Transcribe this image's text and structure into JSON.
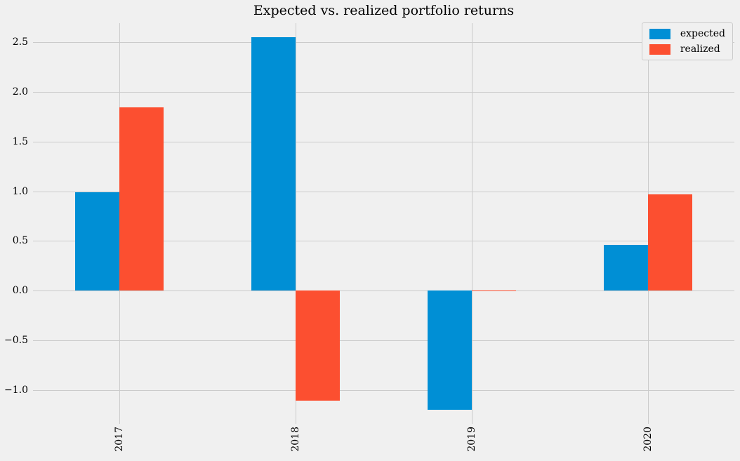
{
  "chart_data": {
    "type": "bar",
    "title": "Expected vs. realized portfolio returns",
    "categories": [
      "2017",
      "2018",
      "2019",
      "2020"
    ],
    "series": [
      {
        "name": "expected",
        "color": "#008fd5",
        "values": [
          0.99,
          2.55,
          -1.2,
          0.46
        ]
      },
      {
        "name": "realized",
        "color": "#fc4f30",
        "values": [
          1.84,
          -1.11,
          -0.01,
          0.97
        ]
      }
    ],
    "xlabel": "",
    "ylabel": "",
    "yticks": [
      2.5,
      2.0,
      1.5,
      1.0,
      0.5,
      0.0,
      -0.5,
      -1.0
    ],
    "ylim": [
      -1.34,
      2.69
    ],
    "xlim": [
      -0.49,
      3.49
    ],
    "bar_width_units": 0.25,
    "grid": true,
    "legend_position": "upper right",
    "style": {
      "background_color": "#f0f0f0",
      "grid_color": "#cbcbcb",
      "text_color": "#000000",
      "legend_border_color": "#cbcbcb"
    }
  }
}
